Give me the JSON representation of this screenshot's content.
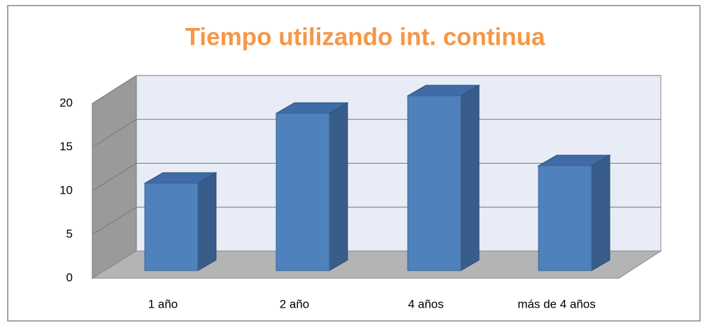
{
  "chart_data": {
    "type": "bar",
    "title": "Tiempo utilizando int. continua",
    "categories": [
      "1 año",
      "2 año",
      "4 años",
      "más de 4 años"
    ],
    "values": [
      10,
      18,
      20,
      12
    ],
    "color": "#4f81bd",
    "ylim": [
      0,
      20
    ],
    "yticks": [
      0,
      5,
      10,
      15,
      20
    ],
    "grid": true
  }
}
